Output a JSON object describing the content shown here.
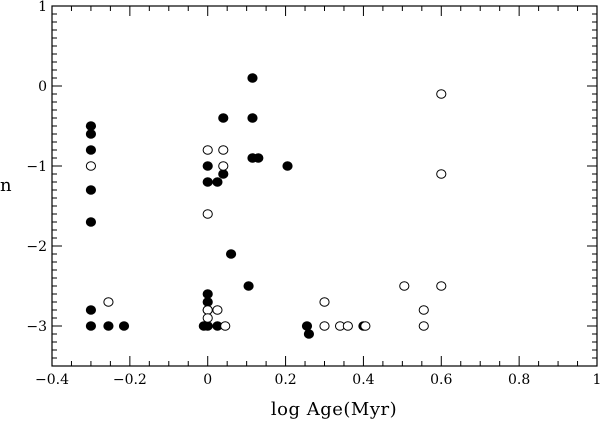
{
  "chart_data": {
    "type": "scatter",
    "title": "",
    "xlabel": "log Age(Myr)",
    "ylabel": "n",
    "xlim": [
      -0.4,
      1.0
    ],
    "ylim": [
      -3.5,
      1.0
    ],
    "x_ticks": [
      -0.4,
      -0.2,
      0,
      0.2,
      0.4,
      0.6,
      0.8,
      1
    ],
    "x_tick_labels": [
      "−0.4",
      "−0.2",
      "0",
      "0.2",
      "0.4",
      "0.6",
      "0.8",
      "1"
    ],
    "y_ticks": [
      -3,
      -2,
      -1,
      0,
      1
    ],
    "y_tick_labels": [
      "−3",
      "−2",
      "−1",
      "0",
      "1"
    ],
    "grid": false,
    "legend": "none",
    "series": [
      {
        "marker": "filled-circle",
        "color": "#000000",
        "points": [
          {
            "x": -0.3,
            "y": -0.5
          },
          {
            "x": -0.3,
            "y": -0.6
          },
          {
            "x": -0.3,
            "y": -0.8
          },
          {
            "x": -0.3,
            "y": -1.3
          },
          {
            "x": -0.3,
            "y": -1.7
          },
          {
            "x": -0.3,
            "y": -2.8
          },
          {
            "x": -0.3,
            "y": -3.0
          },
          {
            "x": -0.255,
            "y": -3.0
          },
          {
            "x": -0.215,
            "y": -3.0
          },
          {
            "x": 0.0,
            "y": -1.0
          },
          {
            "x": 0.0,
            "y": -1.2
          },
          {
            "x": 0.025,
            "y": -1.2
          },
          {
            "x": 0.04,
            "y": -0.4
          },
          {
            "x": 0.04,
            "y": -1.1
          },
          {
            "x": 0.06,
            "y": -2.1
          },
          {
            "x": 0.0,
            "y": -2.6
          },
          {
            "x": 0.0,
            "y": -2.7
          },
          {
            "x": 0.0,
            "y": -2.8
          },
          {
            "x": -0.01,
            "y": -3.0
          },
          {
            "x": 0.0,
            "y": -3.0
          },
          {
            "x": 0.025,
            "y": -3.0
          },
          {
            "x": 0.105,
            "y": -2.5
          },
          {
            "x": 0.115,
            "y": 0.1
          },
          {
            "x": 0.115,
            "y": -0.4
          },
          {
            "x": 0.115,
            "y": -0.9
          },
          {
            "x": 0.13,
            "y": -0.9
          },
          {
            "x": 0.205,
            "y": -1.0
          },
          {
            "x": 0.255,
            "y": -3.0
          },
          {
            "x": 0.26,
            "y": -3.1
          },
          {
            "x": 0.4,
            "y": -3.0
          }
        ]
      },
      {
        "marker": "open-circle",
        "color": "#000000",
        "points": [
          {
            "x": -0.3,
            "y": -1.0
          },
          {
            "x": -0.255,
            "y": -2.7
          },
          {
            "x": 0.0,
            "y": -0.8
          },
          {
            "x": 0.0,
            "y": -1.6
          },
          {
            "x": 0.04,
            "y": -0.8
          },
          {
            "x": 0.04,
            "y": -1.0
          },
          {
            "x": 0.0,
            "y": -2.8
          },
          {
            "x": 0.0,
            "y": -2.9
          },
          {
            "x": 0.025,
            "y": -2.8
          },
          {
            "x": 0.045,
            "y": -3.0
          },
          {
            "x": 0.3,
            "y": -2.7
          },
          {
            "x": 0.3,
            "y": -3.0
          },
          {
            "x": 0.34,
            "y": -3.0
          },
          {
            "x": 0.36,
            "y": -3.0
          },
          {
            "x": 0.405,
            "y": -3.0
          },
          {
            "x": 0.505,
            "y": -2.5
          },
          {
            "x": 0.555,
            "y": -2.8
          },
          {
            "x": 0.555,
            "y": -3.0
          },
          {
            "x": 0.6,
            "y": -0.1
          },
          {
            "x": 0.6,
            "y": -1.1
          },
          {
            "x": 0.6,
            "y": -2.5
          }
        ]
      }
    ]
  }
}
